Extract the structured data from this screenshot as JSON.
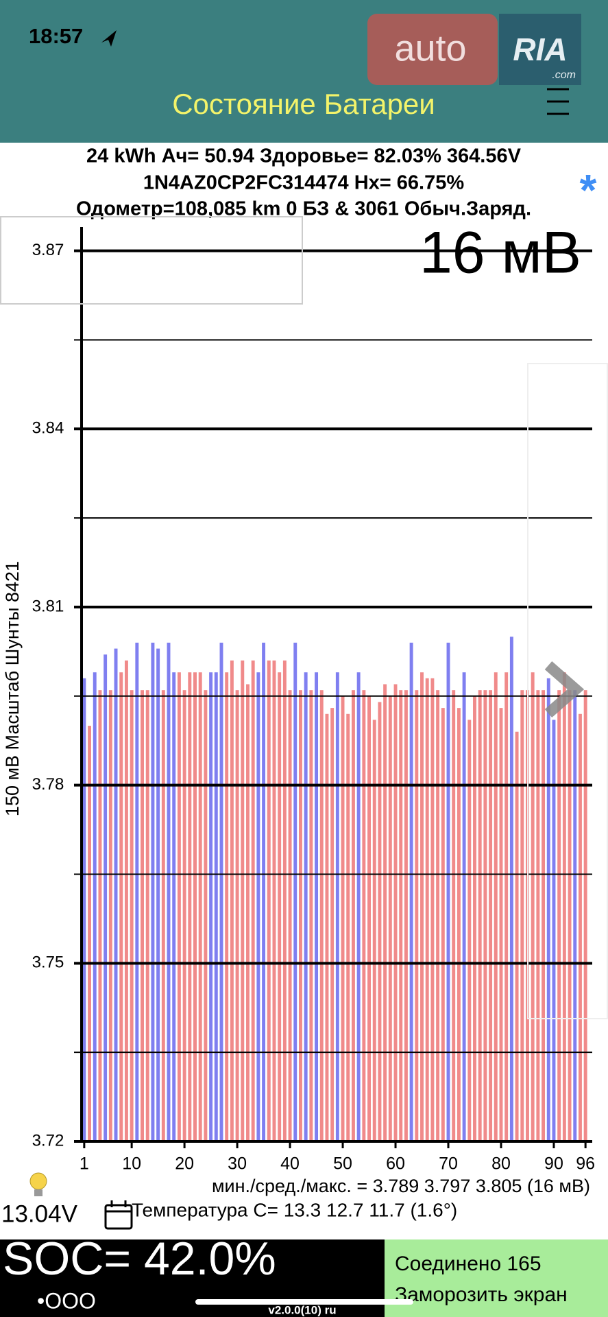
{
  "status_bar": {
    "time": "18:57"
  },
  "header": {
    "title": "Состояние Батареи"
  },
  "watermark": {
    "brand": "auto",
    "logo": "RIA",
    "domain": ".com"
  },
  "info": {
    "lines": [
      "24 kWh  Ач= 50.94 Здоровье= 82.03% 364.56V",
      "1N4AZ0CP2FC314474    Hx= 66.75%",
      "Одометр=108,085 km 0 БЗ & 3061 Обыч.Заряд."
    ],
    "marker": "*"
  },
  "chart_data": {
    "type": "bar",
    "y_label": "150 мВ Масштаб  Шунты 8421",
    "annotation": "16 мВ",
    "x": [
      1,
      2,
      3,
      4,
      5,
      6,
      7,
      8,
      9,
      10,
      11,
      12,
      13,
      14,
      15,
      16,
      17,
      18,
      19,
      20,
      21,
      22,
      23,
      24,
      25,
      26,
      27,
      28,
      29,
      30,
      31,
      32,
      33,
      34,
      35,
      36,
      37,
      38,
      39,
      40,
      41,
      42,
      43,
      44,
      45,
      46,
      47,
      48,
      49,
      50,
      51,
      52,
      53,
      54,
      55,
      56,
      57,
      58,
      59,
      60,
      61,
      62,
      63,
      64,
      65,
      66,
      67,
      68,
      69,
      70,
      71,
      72,
      73,
      74,
      75,
      76,
      77,
      78,
      79,
      80,
      81,
      82,
      83,
      84,
      85,
      86,
      87,
      88,
      89,
      90,
      91,
      92,
      93,
      94,
      95,
      96
    ],
    "values": [
      3.798,
      3.79,
      3.799,
      3.796,
      3.802,
      3.796,
      3.803,
      3.799,
      3.801,
      3.796,
      3.804,
      3.796,
      3.796,
      3.804,
      3.803,
      3.796,
      3.804,
      3.799,
      3.799,
      3.796,
      3.799,
      3.799,
      3.799,
      3.796,
      3.799,
      3.799,
      3.804,
      3.799,
      3.801,
      3.796,
      3.801,
      3.797,
      3.801,
      3.799,
      3.804,
      3.801,
      3.801,
      3.799,
      3.801,
      3.796,
      3.804,
      3.796,
      3.799,
      3.796,
      3.799,
      3.796,
      3.792,
      3.793,
      3.799,
      3.795,
      3.792,
      3.796,
      3.799,
      3.796,
      3.795,
      3.791,
      3.794,
      3.797,
      3.795,
      3.797,
      3.796,
      3.796,
      3.804,
      3.796,
      3.799,
      3.798,
      3.798,
      3.796,
      3.793,
      3.804,
      3.796,
      3.793,
      3.799,
      3.791,
      3.795,
      3.796,
      3.796,
      3.796,
      3.799,
      3.793,
      3.799,
      3.805,
      3.789,
      3.796,
      3.796,
      3.799,
      3.796,
      3.796,
      3.798,
      3.791,
      3.796,
      3.799,
      3.796,
      3.796,
      3.792,
      3.796
    ],
    "colors": [
      "#7f7ff0",
      "#f08a8a",
      "#7f7ff0",
      "#f08a8a",
      "#7f7ff0",
      "#f08a8a",
      "#7f7ff0",
      "#f08a8a",
      "#f08a8a",
      "#f08a8a",
      "#7f7ff0",
      "#f08a8a",
      "#f08a8a",
      "#7f7ff0",
      "#7f7ff0",
      "#f08a8a",
      "#7f7ff0",
      "#7f7ff0",
      "#f08a8a",
      "#f08a8a",
      "#f08a8a",
      "#f08a8a",
      "#f08a8a",
      "#f08a8a",
      "#7f7ff0",
      "#7f7ff0",
      "#7f7ff0",
      "#f08a8a",
      "#f08a8a",
      "#f08a8a",
      "#f08a8a",
      "#f08a8a",
      "#f08a8a",
      "#7f7ff0",
      "#7f7ff0",
      "#f08a8a",
      "#f08a8a",
      "#f08a8a",
      "#f08a8a",
      "#f08a8a",
      "#7f7ff0",
      "#f08a8a",
      "#7f7ff0",
      "#f08a8a",
      "#7f7ff0",
      "#f08a8a",
      "#f08a8a",
      "#f08a8a",
      "#7f7ff0",
      "#f08a8a",
      "#f08a8a",
      "#f08a8a",
      "#7f7ff0",
      "#f08a8a",
      "#f08a8a",
      "#f08a8a",
      "#f08a8a",
      "#f08a8a",
      "#f08a8a",
      "#f08a8a",
      "#f08a8a",
      "#f08a8a",
      "#7f7ff0",
      "#f08a8a",
      "#f08a8a",
      "#f08a8a",
      "#f08a8a",
      "#f08a8a",
      "#f08a8a",
      "#7f7ff0",
      "#f08a8a",
      "#f08a8a",
      "#7f7ff0",
      "#f08a8a",
      "#f08a8a",
      "#f08a8a",
      "#f08a8a",
      "#f08a8a",
      "#f08a8a",
      "#f08a8a",
      "#f08a8a",
      "#7f7ff0",
      "#f08a8a",
      "#f08a8a",
      "#f08a8a",
      "#f08a8a",
      "#f08a8a",
      "#f08a8a",
      "#7f7ff0",
      "#7f7ff0",
      "#f08a8a",
      "#f08a8a",
      "#f08a8a",
      "#7f7ff0",
      "#f08a8a",
      "#f08a8a"
    ],
    "xlim": [
      0.5,
      96.5
    ],
    "xticks": [
      1,
      10,
      20,
      30,
      40,
      50,
      60,
      70,
      80,
      90,
      96
    ],
    "ylim": [
      3.72,
      3.874
    ],
    "yticks": [
      3.72,
      3.75,
      3.78,
      3.81,
      3.84,
      3.87
    ],
    "minor_yticks": [
      3.735,
      3.765,
      3.795,
      3.825,
      3.855
    ]
  },
  "stats": {
    "voltage_summary": "мин./сред./макс. = 3.789 3.797 3.805  (16 мВ)",
    "battery_voltage": "13.04V",
    "temperature": "Температура C= 13.3  12.7  11.7  (1.6°)"
  },
  "footer": {
    "soc": "SOC= 42.0%",
    "page_dots": "•OOO",
    "connection": "Соединено 165",
    "freeze": "Заморозить экран",
    "version": "v2.0.0(10) ru"
  }
}
